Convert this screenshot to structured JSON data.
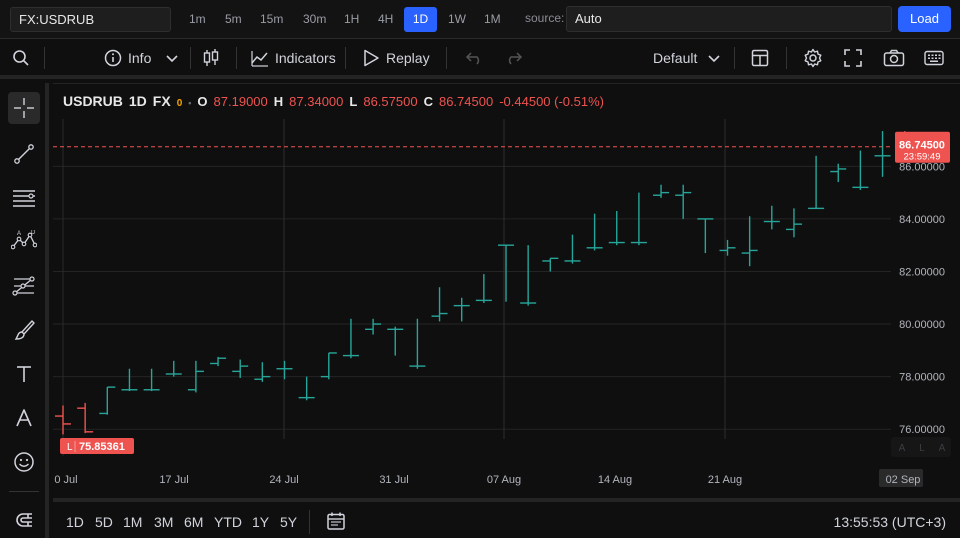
{
  "topbar": {
    "symbol_value": "FX:USDRUB",
    "timeframes": [
      "1m",
      "5m",
      "15m",
      "30m",
      "1H",
      "4H",
      "1D",
      "1W",
      "1M"
    ],
    "active_timeframe": "1D",
    "source_label": "source:",
    "source_value": "Auto",
    "load_label": "Load"
  },
  "toolbar": {
    "search_icon": "search-icon",
    "info_label": "Info",
    "indicators_label": "Indicators",
    "replay_label": "Replay",
    "layout_label": "Default",
    "icons": [
      "search-icon",
      "info-icon",
      "chevron-down-icon",
      "candles-icon",
      "indicators-icon",
      "replay-icon",
      "undo-icon",
      "redo-icon",
      "layout-icon",
      "gear-icon",
      "fullscreen-icon",
      "camera-icon",
      "keyboard-icon"
    ]
  },
  "sidebar": {
    "tools": [
      "crosshair-icon",
      "trendline-icon",
      "fib-icon",
      "pattern-icon",
      "projection-icon",
      "brush-icon",
      "text-icon",
      "font-icon",
      "emoji-icon",
      "magnet-icon"
    ]
  },
  "legend": {
    "symbol": "USDRUB",
    "interval": "1D",
    "exchange": "FX",
    "dot": "0",
    "o_label": "O",
    "o_value": "87.19000",
    "h_label": "H",
    "h_value": "87.34000",
    "l_label": "L",
    "l_value": "86.57500",
    "c_label": "C",
    "c_value": "86.74500",
    "change": "-0.44500 (-0.51%)"
  },
  "price_tag": {
    "price": "86.74500",
    "countdown": "23:59:49",
    "color": "#ef5350"
  },
  "low_tag": {
    "letter": "L",
    "price": "75.85361"
  },
  "watermark_letters": [
    "A",
    "L",
    "A"
  ],
  "chart_data": {
    "type": "ohlc",
    "symbol": "USDRUB",
    "y_ticks": [
      "86.00000",
      "84.00000",
      "82.00000",
      "80.00000",
      "78.00000",
      "76.00000"
    ],
    "ylim": [
      74.6,
      87.8
    ],
    "x_ticks": [
      "0 Jul",
      "17 Jul",
      "24 Jul",
      "31 Jul",
      "07 Aug",
      "14 Aug",
      "21 Aug",
      "02 Sep"
    ],
    "up_color": "#26a69a",
    "down_color": "#ef5350",
    "last_price": 86.745,
    "bars": [
      {
        "o": 76.5,
        "h": 76.9,
        "l": 75.8,
        "c": 76.2
      },
      {
        "o": 76.8,
        "h": 77.0,
        "l": 75.85,
        "c": 75.9
      },
      {
        "o": 76.6,
        "h": 77.6,
        "l": 76.55,
        "c": 77.6
      },
      {
        "o": 77.5,
        "h": 78.3,
        "l": 77.45,
        "c": 77.5
      },
      {
        "o": 77.5,
        "h": 78.3,
        "l": 77.45,
        "c": 77.5
      },
      {
        "o": 78.1,
        "h": 78.6,
        "l": 78.0,
        "c": 78.1
      },
      {
        "o": 77.5,
        "h": 78.6,
        "l": 77.4,
        "c": 78.2
      },
      {
        "o": 78.5,
        "h": 78.75,
        "l": 78.4,
        "c": 78.7
      },
      {
        "o": 78.2,
        "h": 78.65,
        "l": 77.95,
        "c": 78.4
      },
      {
        "o": 77.9,
        "h": 78.55,
        "l": 77.8,
        "c": 78.0
      },
      {
        "o": 78.3,
        "h": 78.6,
        "l": 77.9,
        "c": 78.3
      },
      {
        "o": 77.2,
        "h": 78.0,
        "l": 77.1,
        "c": 77.2
      },
      {
        "o": 78.0,
        "h": 78.9,
        "l": 77.9,
        "c": 78.9
      },
      {
        "o": 78.8,
        "h": 80.2,
        "l": 78.7,
        "c": 78.8
      },
      {
        "o": 79.8,
        "h": 80.2,
        "l": 79.6,
        "c": 80.0
      },
      {
        "o": 79.8,
        "h": 79.9,
        "l": 78.8,
        "c": 79.8
      },
      {
        "o": 78.4,
        "h": 80.2,
        "l": 78.3,
        "c": 78.4
      },
      {
        "o": 80.3,
        "h": 81.4,
        "l": 80.1,
        "c": 80.4
      },
      {
        "o": 80.7,
        "h": 81.0,
        "l": 80.1,
        "c": 80.7
      },
      {
        "o": 80.9,
        "h": 81.9,
        "l": 80.8,
        "c": 80.9
      },
      {
        "o": 83.0,
        "h": 83.0,
        "l": 80.85,
        "c": 83.0
      },
      {
        "o": 80.8,
        "h": 83.0,
        "l": 80.7,
        "c": 80.8
      },
      {
        "o": 82.4,
        "h": 82.5,
        "l": 82.0,
        "c": 82.5
      },
      {
        "o": 82.4,
        "h": 83.4,
        "l": 82.3,
        "c": 82.4
      },
      {
        "o": 82.9,
        "h": 84.2,
        "l": 82.8,
        "c": 82.9
      },
      {
        "o": 83.1,
        "h": 84.3,
        "l": 83.0,
        "c": 83.1
      },
      {
        "o": 83.1,
        "h": 85.0,
        "l": 83.0,
        "c": 83.1
      },
      {
        "o": 84.9,
        "h": 85.3,
        "l": 84.8,
        "c": 85.0
      },
      {
        "o": 84.9,
        "h": 85.3,
        "l": 84.0,
        "c": 85.0
      },
      {
        "o": 84.0,
        "h": 84.0,
        "l": 82.7,
        "c": 84.0
      },
      {
        "o": 82.8,
        "h": 83.2,
        "l": 82.6,
        "c": 82.9
      },
      {
        "o": 82.7,
        "h": 84.1,
        "l": 82.2,
        "c": 82.8
      },
      {
        "o": 83.9,
        "h": 84.5,
        "l": 83.6,
        "c": 83.9
      },
      {
        "o": 83.6,
        "h": 84.4,
        "l": 83.3,
        "c": 83.8
      },
      {
        "o": 84.4,
        "h": 86.4,
        "l": 84.4,
        "c": 84.4
      },
      {
        "o": 85.8,
        "h": 86.1,
        "l": 85.4,
        "c": 85.9
      },
      {
        "o": 85.2,
        "h": 86.6,
        "l": 85.1,
        "c": 85.2
      },
      {
        "o": 86.4,
        "h": 87.34,
        "l": 85.6,
        "c": 86.4
      },
      {
        "o": 87.19,
        "h": 87.34,
        "l": 86.575,
        "c": 86.745
      }
    ]
  },
  "bottombar": {
    "ranges": [
      "1D",
      "5D",
      "1M",
      "3M",
      "6M",
      "YTD",
      "1Y",
      "5Y"
    ],
    "clock": "13:55:53 (UTC+3)"
  }
}
